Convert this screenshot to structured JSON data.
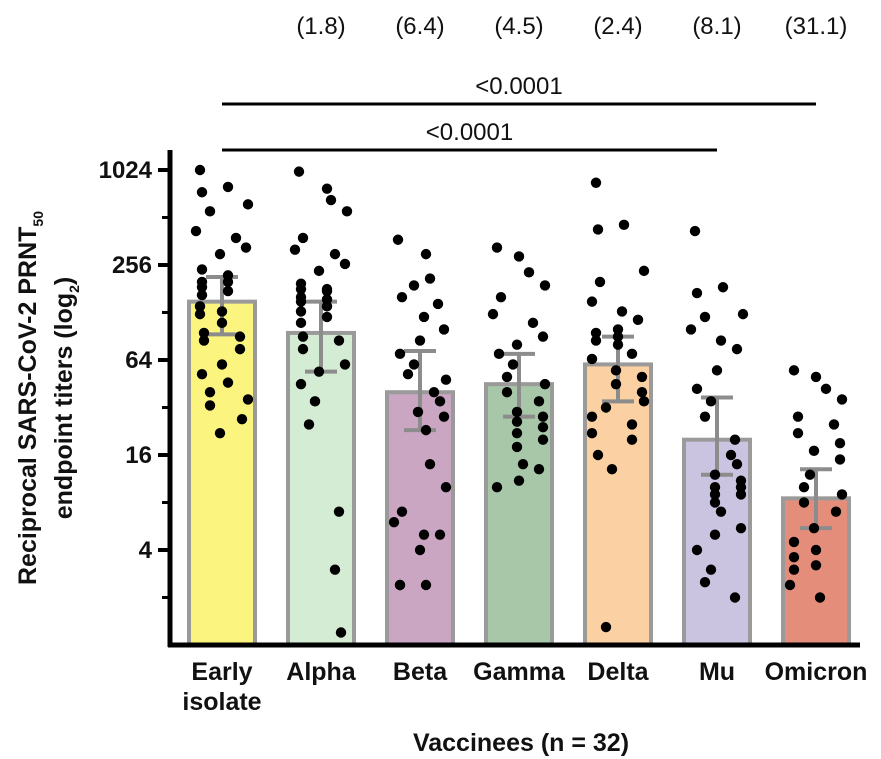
{
  "chart_data": {
    "type": "bar",
    "xlabel": "Vaccinees (n = 32)",
    "ylabel": {
      "prefix": "Reciprocal SARS-CoV-2 PRNT",
      "subscript": "50",
      "line2_prefix": "endpoint titers (log",
      "line2_subscript": "2",
      "line2_suffix": ")"
    },
    "yscale": "log2",
    "ylim": [
      1,
      1200
    ],
    "yticks": [
      {
        "value": 4,
        "label": "4"
      },
      {
        "value": 16,
        "label": "16"
      },
      {
        "value": 64,
        "label": "64"
      },
      {
        "value": 256,
        "label": "256"
      },
      {
        "value": 1024,
        "label": "1024"
      }
    ],
    "categories": [
      {
        "label": [
          "Early",
          "isolate"
        ],
        "color": "#fbf57f",
        "value": 150,
        "err_low": 93,
        "err_high": 215,
        "fold": "",
        "points": [
          1024,
          800,
          740,
          620,
          560,
          420,
          380,
          330,
          300,
          240,
          220,
          200,
          200,
          185,
          175,
          165,
          140,
          130,
          125,
          110,
          95,
          90,
          85,
          75,
          60,
          52,
          46,
          40,
          36,
          33,
          27,
          22
        ]
      },
      {
        "label": [
          "Alpha",
          ""
        ],
        "color": "#d4ecd3",
        "value": 95,
        "err_low": 54,
        "err_high": 150,
        "fold": "(1.8)",
        "points": [
          1000,
          780,
          660,
          560,
          380,
          320,
          300,
          260,
          235,
          195,
          180,
          180,
          175,
          160,
          155,
          150,
          140,
          130,
          120,
          110,
          90,
          85,
          75,
          60,
          54,
          45,
          35,
          25,
          7,
          3,
          1.2
        ]
      },
      {
        "label": [
          "Beta",
          ""
        ],
        "color": "#cba6c2",
        "value": 40,
        "err_low": 23,
        "err_high": 73,
        "fold": "(6.4)",
        "points": [
          370,
          300,
          210,
          190,
          160,
          145,
          120,
          100,
          85,
          70,
          60,
          52,
          48,
          40,
          35,
          30,
          28,
          23,
          14,
          10,
          7,
          6,
          5,
          5,
          4,
          2.4,
          2.4,
          2.4
        ]
      },
      {
        "label": [
          "Gamma",
          ""
        ],
        "color": "#a8c7a9",
        "value": 45,
        "err_low": 28,
        "err_high": 70,
        "fold": "(4.5)",
        "points": [
          330,
          290,
          230,
          190,
          160,
          125,
          110,
          90,
          80,
          70,
          60,
          50,
          45,
          40,
          35,
          30,
          28,
          26,
          24,
          22,
          20,
          18,
          14,
          13,
          11,
          10
        ]
      },
      {
        "label": [
          "Delta",
          ""
        ],
        "color": "#fbd0a2",
        "value": 60,
        "err_low": 35,
        "err_high": 90,
        "fold": "(2.4)",
        "points": [
          850,
          460,
          430,
          235,
          200,
          150,
          130,
          115,
          100,
          95,
          90,
          85,
          80,
          70,
          65,
          55,
          50,
          45,
          40,
          35,
          32,
          28,
          25,
          22,
          20,
          16,
          13,
          1.3
        ]
      },
      {
        "label": [
          "Mu",
          ""
        ],
        "color": "#cbc4e1",
        "value": 20,
        "err_low": 12,
        "err_high": 37,
        "fold": "(8.1)",
        "points": [
          420,
          185,
          170,
          125,
          120,
          100,
          85,
          75,
          55,
          42,
          35,
          28,
          20,
          16,
          14,
          12,
          11,
          10,
          10,
          9,
          9,
          8,
          7,
          5.5,
          5,
          4,
          3,
          2.5,
          2
        ]
      },
      {
        "label": [
          "Omicron",
          ""
        ],
        "color": "#e58d7b",
        "value": 8.5,
        "err_low": 5.5,
        "err_high": 13,
        "fold": "(31.1)",
        "points": [
          55,
          50,
          42,
          36,
          28,
          25,
          22,
          19,
          17,
          15,
          12,
          10,
          9,
          8,
          7,
          5.5,
          4.5,
          4,
          3.6,
          3.2,
          3,
          2.4,
          2
        ]
      }
    ],
    "comparisons": [
      {
        "from": 0,
        "to": 6,
        "label": "<0.0001"
      },
      {
        "from": 0,
        "to": 5,
        "label": "<0.0001"
      }
    ]
  }
}
